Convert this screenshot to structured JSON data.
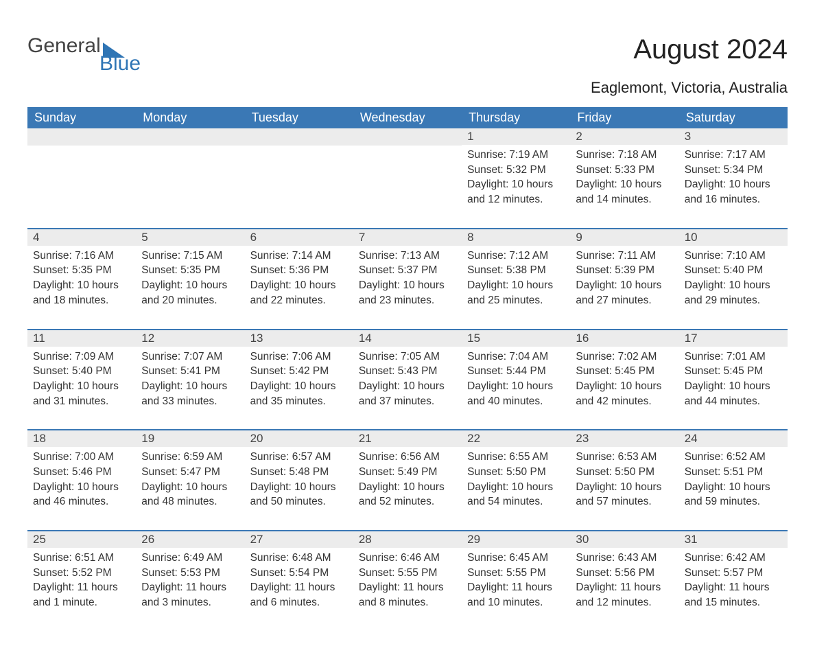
{
  "logo": {
    "text_top": "General",
    "text_bottom": "Blue",
    "icon_color": "#2f75b5",
    "text_top_color": "#444444",
    "text_bottom_color": "#2f75b5"
  },
  "title": "August 2024",
  "location": "Eaglemont, Victoria, Australia",
  "colors": {
    "header_bg": "#3a78b5",
    "header_text": "#ffffff",
    "day_number_bg": "#ececec",
    "border": "#3a78b5",
    "body_text": "#333333"
  },
  "weekdays": [
    "Sunday",
    "Monday",
    "Tuesday",
    "Wednesday",
    "Thursday",
    "Friday",
    "Saturday"
  ],
  "weeks": [
    [
      {
        "day": "",
        "sunrise": "",
        "sunset": "",
        "daylight": ""
      },
      {
        "day": "",
        "sunrise": "",
        "sunset": "",
        "daylight": ""
      },
      {
        "day": "",
        "sunrise": "",
        "sunset": "",
        "daylight": ""
      },
      {
        "day": "",
        "sunrise": "",
        "sunset": "",
        "daylight": ""
      },
      {
        "day": "1",
        "sunrise": "Sunrise: 7:19 AM",
        "sunset": "Sunset: 5:32 PM",
        "daylight": "Daylight: 10 hours and 12 minutes."
      },
      {
        "day": "2",
        "sunrise": "Sunrise: 7:18 AM",
        "sunset": "Sunset: 5:33 PM",
        "daylight": "Daylight: 10 hours and 14 minutes."
      },
      {
        "day": "3",
        "sunrise": "Sunrise: 7:17 AM",
        "sunset": "Sunset: 5:34 PM",
        "daylight": "Daylight: 10 hours and 16 minutes."
      }
    ],
    [
      {
        "day": "4",
        "sunrise": "Sunrise: 7:16 AM",
        "sunset": "Sunset: 5:35 PM",
        "daylight": "Daylight: 10 hours and 18 minutes."
      },
      {
        "day": "5",
        "sunrise": "Sunrise: 7:15 AM",
        "sunset": "Sunset: 5:35 PM",
        "daylight": "Daylight: 10 hours and 20 minutes."
      },
      {
        "day": "6",
        "sunrise": "Sunrise: 7:14 AM",
        "sunset": "Sunset: 5:36 PM",
        "daylight": "Daylight: 10 hours and 22 minutes."
      },
      {
        "day": "7",
        "sunrise": "Sunrise: 7:13 AM",
        "sunset": "Sunset: 5:37 PM",
        "daylight": "Daylight: 10 hours and 23 minutes."
      },
      {
        "day": "8",
        "sunrise": "Sunrise: 7:12 AM",
        "sunset": "Sunset: 5:38 PM",
        "daylight": "Daylight: 10 hours and 25 minutes."
      },
      {
        "day": "9",
        "sunrise": "Sunrise: 7:11 AM",
        "sunset": "Sunset: 5:39 PM",
        "daylight": "Daylight: 10 hours and 27 minutes."
      },
      {
        "day": "10",
        "sunrise": "Sunrise: 7:10 AM",
        "sunset": "Sunset: 5:40 PM",
        "daylight": "Daylight: 10 hours and 29 minutes."
      }
    ],
    [
      {
        "day": "11",
        "sunrise": "Sunrise: 7:09 AM",
        "sunset": "Sunset: 5:40 PM",
        "daylight": "Daylight: 10 hours and 31 minutes."
      },
      {
        "day": "12",
        "sunrise": "Sunrise: 7:07 AM",
        "sunset": "Sunset: 5:41 PM",
        "daylight": "Daylight: 10 hours and 33 minutes."
      },
      {
        "day": "13",
        "sunrise": "Sunrise: 7:06 AM",
        "sunset": "Sunset: 5:42 PM",
        "daylight": "Daylight: 10 hours and 35 minutes."
      },
      {
        "day": "14",
        "sunrise": "Sunrise: 7:05 AM",
        "sunset": "Sunset: 5:43 PM",
        "daylight": "Daylight: 10 hours and 37 minutes."
      },
      {
        "day": "15",
        "sunrise": "Sunrise: 7:04 AM",
        "sunset": "Sunset: 5:44 PM",
        "daylight": "Daylight: 10 hours and 40 minutes."
      },
      {
        "day": "16",
        "sunrise": "Sunrise: 7:02 AM",
        "sunset": "Sunset: 5:45 PM",
        "daylight": "Daylight: 10 hours and 42 minutes."
      },
      {
        "day": "17",
        "sunrise": "Sunrise: 7:01 AM",
        "sunset": "Sunset: 5:45 PM",
        "daylight": "Daylight: 10 hours and 44 minutes."
      }
    ],
    [
      {
        "day": "18",
        "sunrise": "Sunrise: 7:00 AM",
        "sunset": "Sunset: 5:46 PM",
        "daylight": "Daylight: 10 hours and 46 minutes."
      },
      {
        "day": "19",
        "sunrise": "Sunrise: 6:59 AM",
        "sunset": "Sunset: 5:47 PM",
        "daylight": "Daylight: 10 hours and 48 minutes."
      },
      {
        "day": "20",
        "sunrise": "Sunrise: 6:57 AM",
        "sunset": "Sunset: 5:48 PM",
        "daylight": "Daylight: 10 hours and 50 minutes."
      },
      {
        "day": "21",
        "sunrise": "Sunrise: 6:56 AM",
        "sunset": "Sunset: 5:49 PM",
        "daylight": "Daylight: 10 hours and 52 minutes."
      },
      {
        "day": "22",
        "sunrise": "Sunrise: 6:55 AM",
        "sunset": "Sunset: 5:50 PM",
        "daylight": "Daylight: 10 hours and 54 minutes."
      },
      {
        "day": "23",
        "sunrise": "Sunrise: 6:53 AM",
        "sunset": "Sunset: 5:50 PM",
        "daylight": "Daylight: 10 hours and 57 minutes."
      },
      {
        "day": "24",
        "sunrise": "Sunrise: 6:52 AM",
        "sunset": "Sunset: 5:51 PM",
        "daylight": "Daylight: 10 hours and 59 minutes."
      }
    ],
    [
      {
        "day": "25",
        "sunrise": "Sunrise: 6:51 AM",
        "sunset": "Sunset: 5:52 PM",
        "daylight": "Daylight: 11 hours and 1 minute."
      },
      {
        "day": "26",
        "sunrise": "Sunrise: 6:49 AM",
        "sunset": "Sunset: 5:53 PM",
        "daylight": "Daylight: 11 hours and 3 minutes."
      },
      {
        "day": "27",
        "sunrise": "Sunrise: 6:48 AM",
        "sunset": "Sunset: 5:54 PM",
        "daylight": "Daylight: 11 hours and 6 minutes."
      },
      {
        "day": "28",
        "sunrise": "Sunrise: 6:46 AM",
        "sunset": "Sunset: 5:55 PM",
        "daylight": "Daylight: 11 hours and 8 minutes."
      },
      {
        "day": "29",
        "sunrise": "Sunrise: 6:45 AM",
        "sunset": "Sunset: 5:55 PM",
        "daylight": "Daylight: 11 hours and 10 minutes."
      },
      {
        "day": "30",
        "sunrise": "Sunrise: 6:43 AM",
        "sunset": "Sunset: 5:56 PM",
        "daylight": "Daylight: 11 hours and 12 minutes."
      },
      {
        "day": "31",
        "sunrise": "Sunrise: 6:42 AM",
        "sunset": "Sunset: 5:57 PM",
        "daylight": "Daylight: 11 hours and 15 minutes."
      }
    ]
  ]
}
